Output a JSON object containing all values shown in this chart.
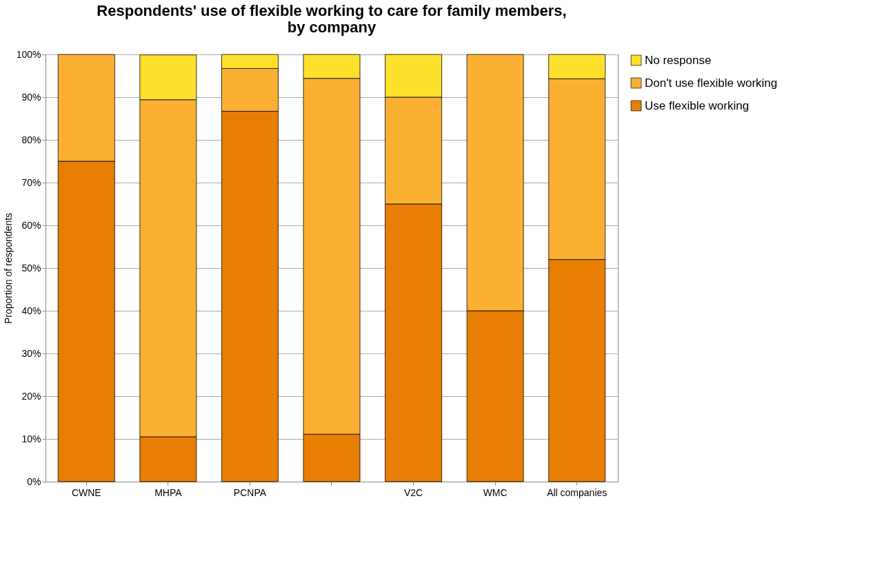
{
  "chart_data": {
    "type": "bar",
    "title": "Respondents' use of flexible working to care for family members, by company",
    "ylabel": "Proportion of respondents",
    "categories": [
      "CWNE",
      "MHPA",
      "PCNPA",
      null,
      "V2C",
      "WMC",
      "All companies"
    ],
    "stacked": true,
    "series": [
      {
        "name": "Use flexible working",
        "color": "#e87e04",
        "values": [
          75,
          10.5,
          86.7,
          11.1,
          65,
          40,
          52.0
        ]
      },
      {
        "name": "Don't use flexible working",
        "color": "#fbb034",
        "values": [
          25,
          78.9,
          10.0,
          83.3,
          25,
          60,
          42.3
        ]
      },
      {
        "name": "No response",
        "color": "#fde02c",
        "values": [
          null,
          10.5,
          3.3,
          5.6,
          10,
          null,
          5.7
        ]
      }
    ],
    "ylim": [
      0,
      100
    ],
    "yticks": [
      {
        "value": 0,
        "label": "0%"
      },
      {
        "value": 10,
        "label": "10%"
      },
      {
        "value": 20,
        "label": "20%"
      },
      {
        "value": 30,
        "label": "30%"
      },
      {
        "value": 40,
        "label": "40%"
      },
      {
        "value": 50,
        "label": "50%"
      },
      {
        "value": 60,
        "label": "60%"
      },
      {
        "value": 70,
        "label": "70%"
      },
      {
        "value": 80,
        "label": "80%"
      },
      {
        "value": 90,
        "label": "90%"
      },
      {
        "value": 100,
        "label": "100%"
      }
    ],
    "grid": "y",
    "legend": "right"
  }
}
